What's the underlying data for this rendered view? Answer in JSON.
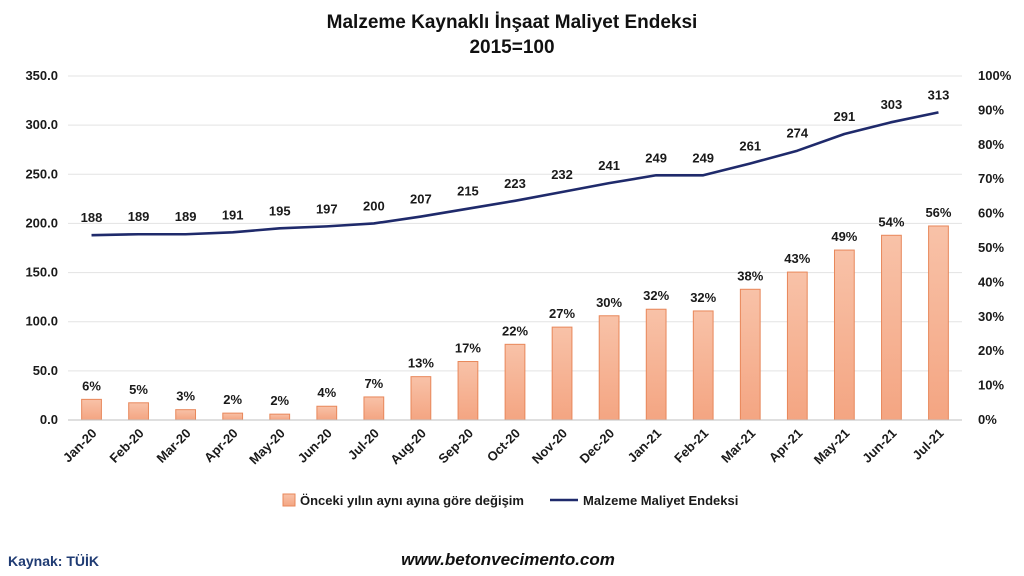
{
  "chart_data": {
    "type": "bar",
    "title": "Malzeme Kaynaklı İnşaat Maliyet Endeksi",
    "subtitle": "2015=100",
    "categories": [
      "Jan-20",
      "Feb-20",
      "Mar-20",
      "Apr-20",
      "May-20",
      "Jun-20",
      "Jul-20",
      "Aug-20",
      "Sep-20",
      "Oct-20",
      "Nov-20",
      "Dec-20",
      "Jan-21",
      "Feb-21",
      "Mar-21",
      "Apr-21",
      "May-21",
      "Jun-21",
      "Jul-21"
    ],
    "ylim": [
      0,
      350
    ],
    "y_ticks": [
      "0.0",
      "50.0",
      "100.0",
      "150.0",
      "200.0",
      "250.0",
      "300.0",
      "350.0"
    ],
    "y2lim": [
      0,
      100
    ],
    "y2_ticks": [
      "0%",
      "10%",
      "20%",
      "30%",
      "40%",
      "50%",
      "60%",
      "70%",
      "80%",
      "90%",
      "100%"
    ],
    "grid": true,
    "legend_position": "bottom",
    "series": [
      {
        "name": "Önceki yılın aynı ayına göre değişim",
        "type": "bar",
        "axis": "right",
        "color": "#f4a582",
        "values": [
          6,
          5,
          3,
          2,
          1.7,
          4,
          6.7,
          12.6,
          17,
          22,
          27,
          30.3,
          32.2,
          31.7,
          38,
          43,
          49.4,
          53.7,
          56.4
        ],
        "labels": [
          "6%",
          "5%",
          "3%",
          "2%",
          "2%",
          "4%",
          "7%",
          "13%",
          "17%",
          "22%",
          "27%",
          "30%",
          "32%",
          "32%",
          "38%",
          "43%",
          "49%",
          "54%",
          "56%"
        ]
      },
      {
        "name": "Malzeme Maliyet Endeksi",
        "type": "line",
        "axis": "left",
        "color": "#1f2a6b",
        "values": [
          188,
          189,
          189,
          191,
          195,
          197,
          200,
          207,
          215,
          223,
          232,
          241,
          249,
          249,
          261,
          274,
          291,
          303,
          313
        ],
        "labels": [
          "188",
          "189",
          "189",
          "191",
          "195",
          "197",
          "200",
          "207",
          "215",
          "223",
          "232",
          "241",
          "249",
          "249",
          "261",
          "274",
          "291",
          "303",
          "313"
        ]
      }
    ]
  },
  "footer": {
    "source": "Kaynak: TÜİK",
    "website": "www.betonvecimento.com"
  }
}
